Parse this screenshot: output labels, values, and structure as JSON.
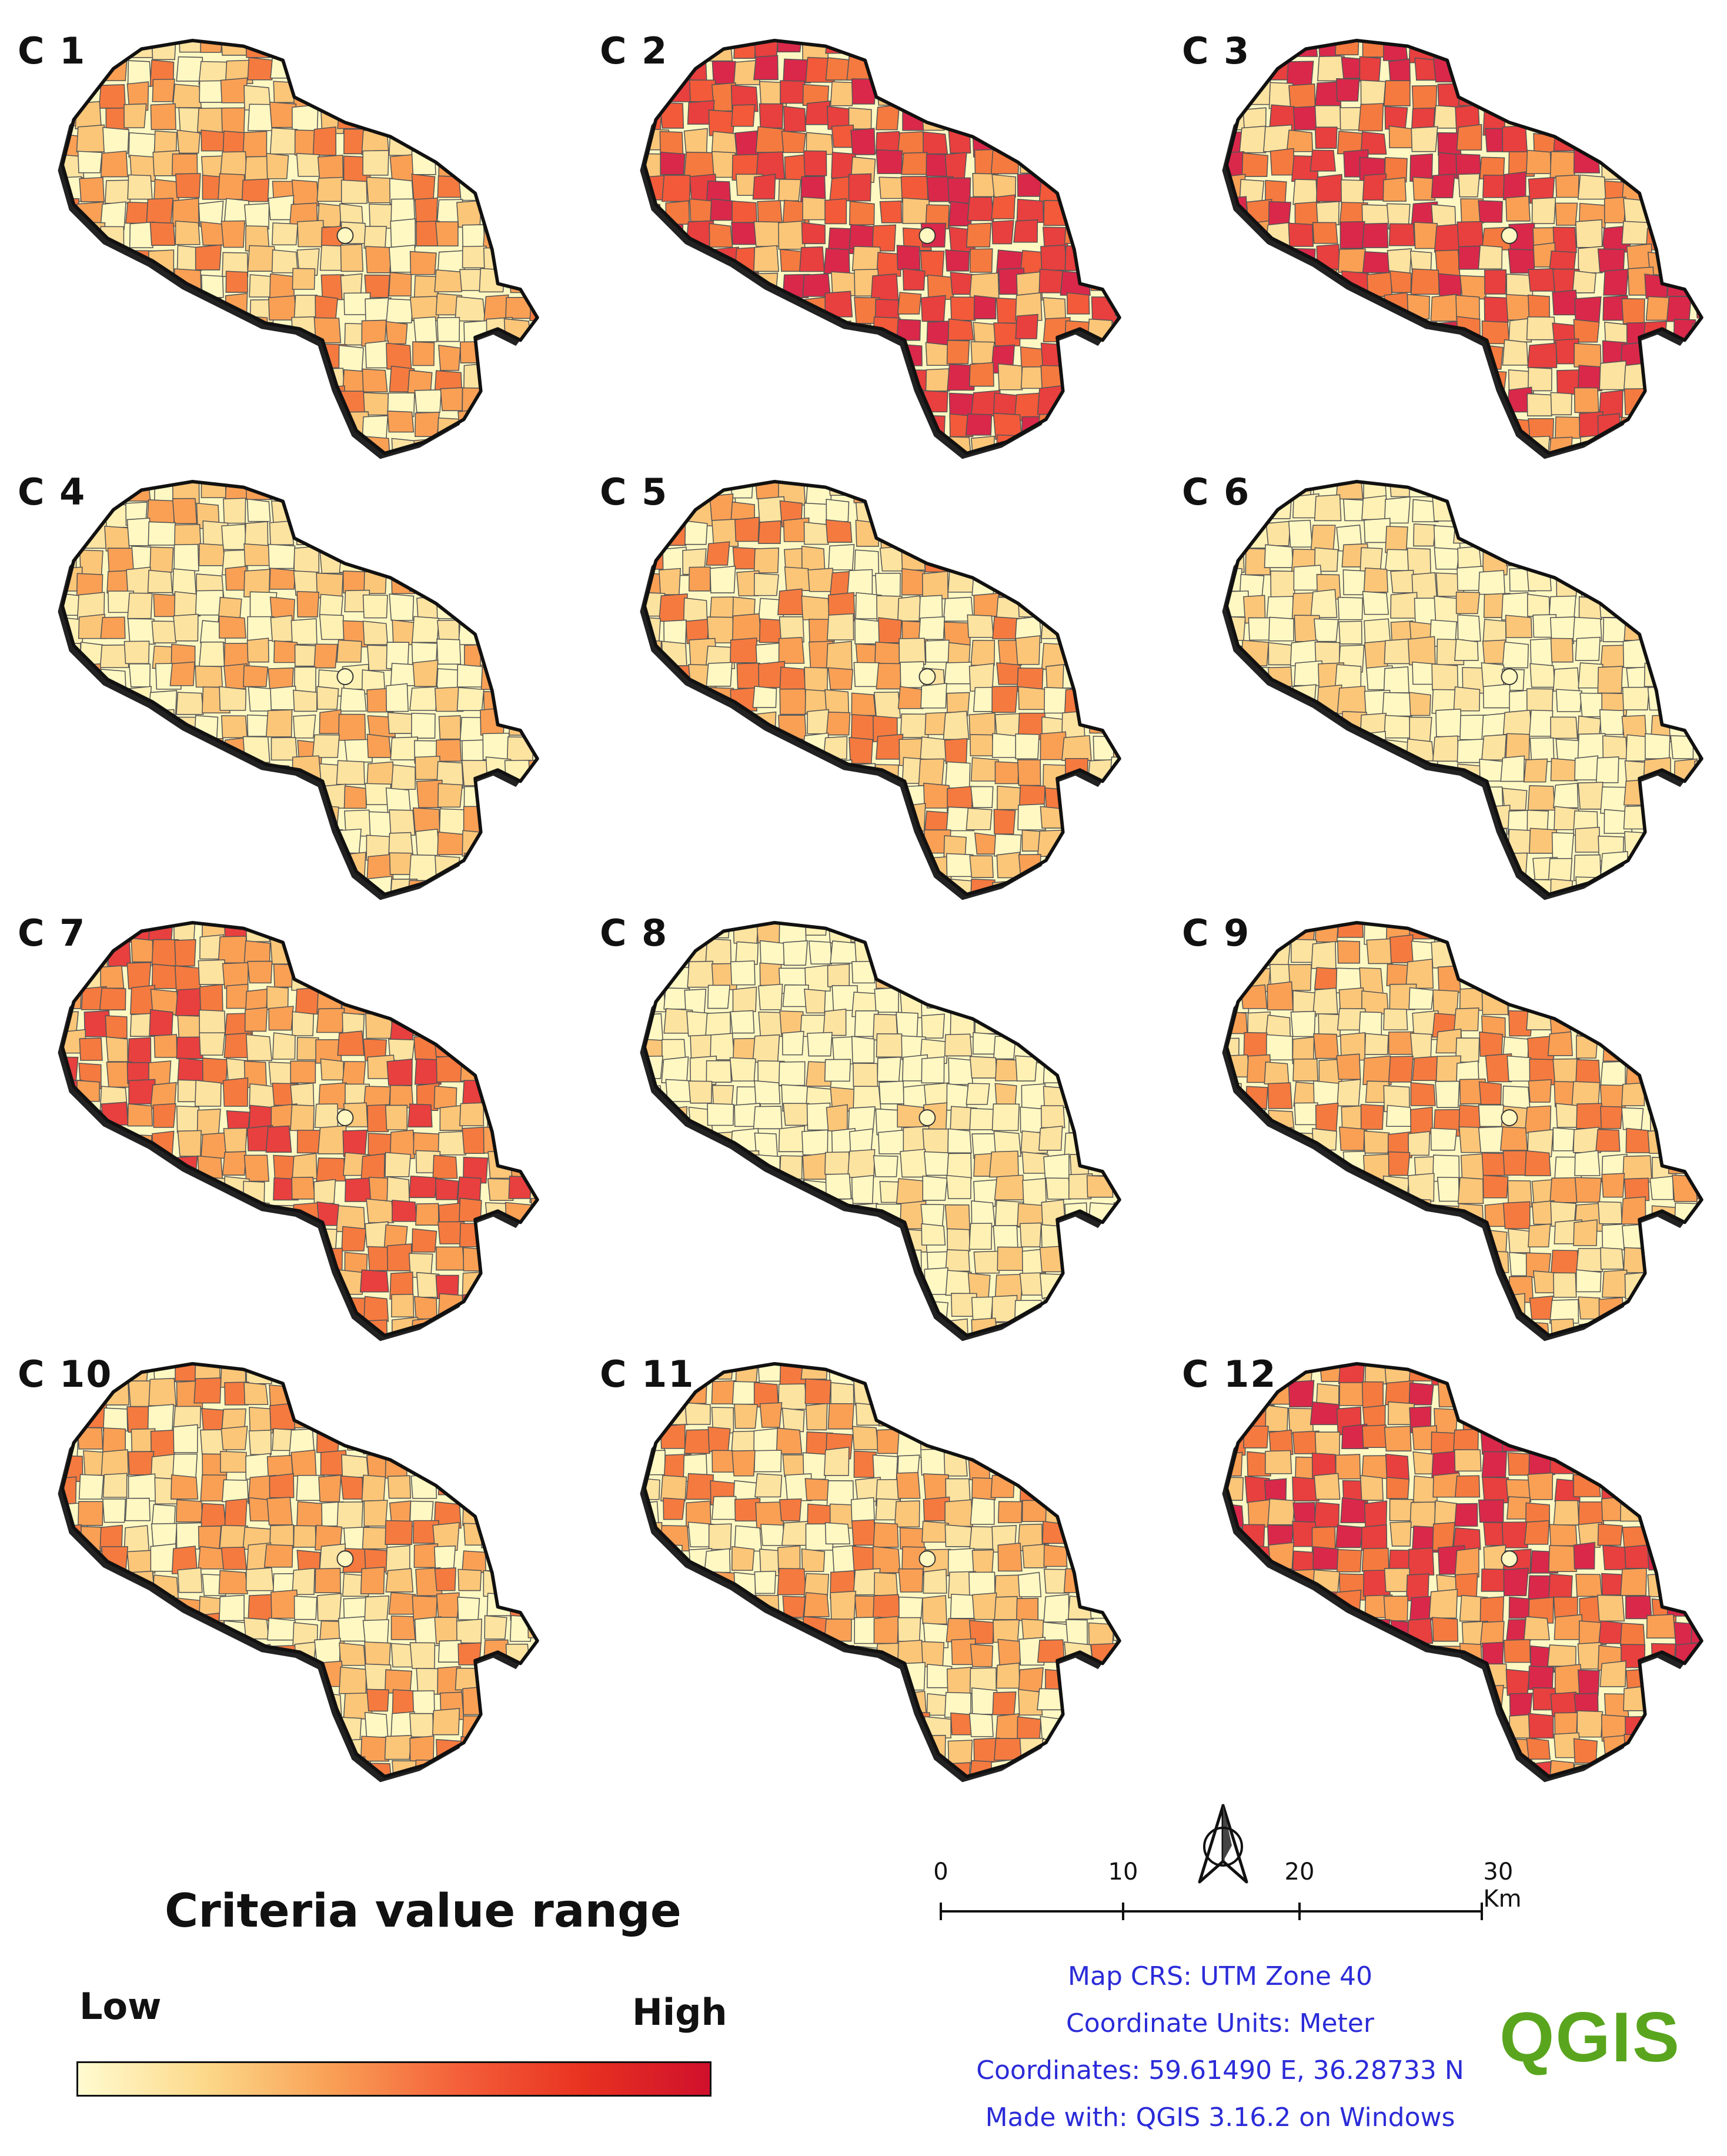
{
  "panels": [
    {
      "label": "C 1",
      "palette": [
        "#fff8c2",
        "#fde3a0",
        "#fbc678",
        "#f9a055",
        "#f57a3f"
      ]
    },
    {
      "label": "C 2",
      "palette": [
        "#f57a3f",
        "#f25a3a",
        "#e83f3f",
        "#d9284a",
        "#fbc678"
      ]
    },
    {
      "label": "C 3",
      "palette": [
        "#e83f3f",
        "#d9284a",
        "#f57a3f",
        "#f9a055",
        "#fde3a0"
      ]
    },
    {
      "label": "C 4",
      "palette": [
        "#fff8c2",
        "#fde3a0",
        "#fbc678",
        "#f9a055",
        "#fff1b4"
      ]
    },
    {
      "label": "C 5",
      "palette": [
        "#fff8c2",
        "#fde3a0",
        "#fbc678",
        "#f9a055",
        "#f57a3f"
      ]
    },
    {
      "label": "C 6",
      "palette": [
        "#fff8c2",
        "#fff1b4",
        "#fde3a0",
        "#fbc678",
        "#fff8c2"
      ]
    },
    {
      "label": "C 7",
      "palette": [
        "#f9a055",
        "#fbc678",
        "#f57a3f",
        "#fde3a0",
        "#e83f3f"
      ]
    },
    {
      "label": "C 8",
      "palette": [
        "#fff8c2",
        "#fff1b4",
        "#fff8c2",
        "#fde3a0",
        "#fbc678"
      ]
    },
    {
      "label": "C 9",
      "palette": [
        "#fff8c2",
        "#fde3a0",
        "#fbc678",
        "#f9a055",
        "#f57a3f"
      ]
    },
    {
      "label": "C 10",
      "palette": [
        "#fbc678",
        "#f9a055",
        "#fde3a0",
        "#fff8c2",
        "#f57a3f"
      ]
    },
    {
      "label": "C 11",
      "palette": [
        "#fff8c2",
        "#fde3a0",
        "#fbc678",
        "#f9a055",
        "#f57a3f"
      ]
    },
    {
      "label": "C 12",
      "palette": [
        "#e83f3f",
        "#d9284a",
        "#f9a055",
        "#f57a3f",
        "#fbc678"
      ]
    }
  ],
  "legend": {
    "title": "Criteria value range",
    "low_label": "Low",
    "high_label": "High",
    "gradient_colors": [
      "#fffbd0",
      "#fcd98a",
      "#f9a055",
      "#f4603a",
      "#e83220",
      "#d0102c"
    ]
  },
  "scale_bar": {
    "ticks": [
      "0",
      "10",
      "20",
      "30 Km"
    ]
  },
  "north_arrow": {
    "icon": "north-arrow-icon"
  },
  "map_info": {
    "crs": "Map CRS: UTM Zone 40",
    "units": "Coordinate Units: Meter",
    "coordinates": "Coordinates: 59.61490 E, 36.28733 N",
    "made_with": "Made with: QGIS 3.16.2 on Windows"
  },
  "logo": {
    "text": "QGIS"
  },
  "colors": {
    "boundary": "#111111",
    "info_text": "#2b2bd8",
    "logo_green": "#5aa51e"
  }
}
